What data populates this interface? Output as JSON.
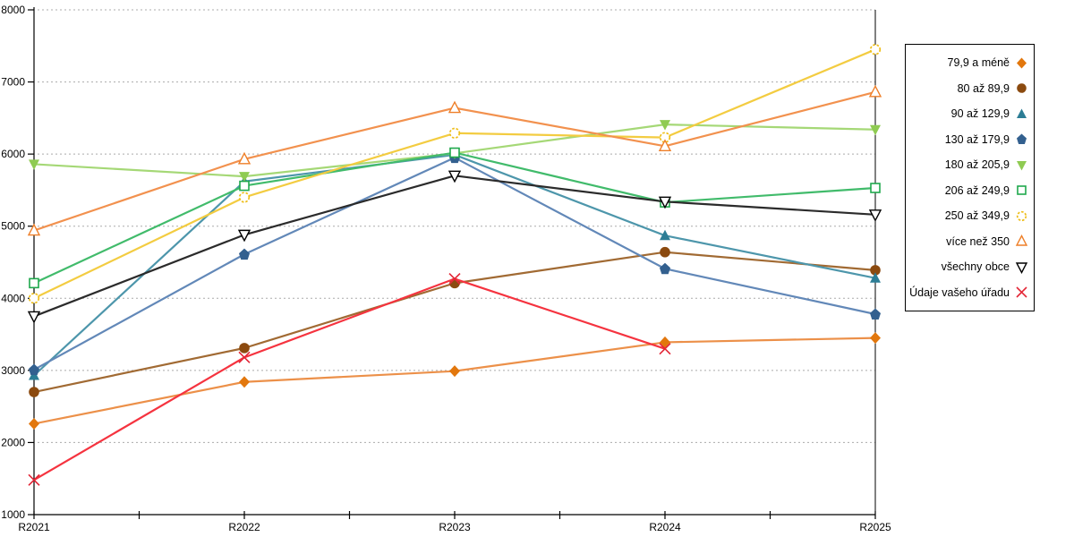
{
  "chart_data": {
    "type": "line",
    "title": "",
    "xlabel": "",
    "ylabel": "",
    "categories": [
      "R2021",
      "R2022",
      "R2023",
      "R2024",
      "R2025"
    ],
    "series": [
      {
        "name": "79,9 a méně",
        "marker": "diamond-filled",
        "color": "#E2770D",
        "line_color": "#EC9049",
        "values": [
          2260,
          2840,
          2990,
          3390,
          3450
        ]
      },
      {
        "name": "80 až 89,9",
        "marker": "circle-filled",
        "color": "#8B4A0F",
        "line_color": "#A16A33",
        "values": [
          2700,
          3310,
          4210,
          4640,
          4390
        ]
      },
      {
        "name": "90 až 129,9",
        "marker": "triangle-up-filled",
        "color": "#2C7D95",
        "line_color": "#4D96AB",
        "values": [
          2930,
          5620,
          5990,
          4870,
          4280
        ]
      },
      {
        "name": "130 až 179,9",
        "marker": "pentagon-filled",
        "color": "#33608F",
        "line_color": "#6288B8",
        "values": [
          3010,
          4610,
          5950,
          4410,
          3780
        ]
      },
      {
        "name": "180 až 205,9",
        "marker": "triangle-down-filled",
        "color": "#8FCB52",
        "line_color": "#A5D876",
        "values": [
          5860,
          5690,
          6010,
          6410,
          6340
        ]
      },
      {
        "name": "206 až 249,9",
        "marker": "square-open",
        "color": "#1FA84C",
        "line_color": "#41BB6B",
        "values": [
          4210,
          5560,
          6020,
          5330,
          5530
        ]
      },
      {
        "name": "250 až 349,9",
        "marker": "circle-open-dashed",
        "color": "#EEBE19",
        "line_color": "#F3CC41",
        "values": [
          4000,
          5400,
          6290,
          6230,
          7450
        ]
      },
      {
        "name": "více než 350",
        "marker": "triangle-up-open",
        "color": "#EE7F28",
        "line_color": "#F2914E",
        "values": [
          4940,
          5930,
          6640,
          6110,
          6860
        ]
      },
      {
        "name": "všechny obce",
        "marker": "triangle-down-open",
        "color": "#000000",
        "line_color": "#2B2B2B",
        "values": [
          3750,
          4880,
          5700,
          5340,
          5160
        ]
      },
      {
        "name": "Údaje vašeho úřadu",
        "marker": "x",
        "color": "#E32636",
        "line_color": "#F5333F",
        "values": [
          1480,
          3180,
          4270,
          3300,
          null
        ]
      }
    ],
    "ylim": [
      1000,
      8000
    ],
    "ytick_step": 1000,
    "y_tick_labels": [
      "1000",
      "2000",
      "3000",
      "4000",
      "5000",
      "6000",
      "7000",
      "8000"
    ],
    "grid": "horizontal-dotted",
    "grid_color": "#ABABAB",
    "axis_color": "#000000",
    "legend_position": "right-outside"
  }
}
